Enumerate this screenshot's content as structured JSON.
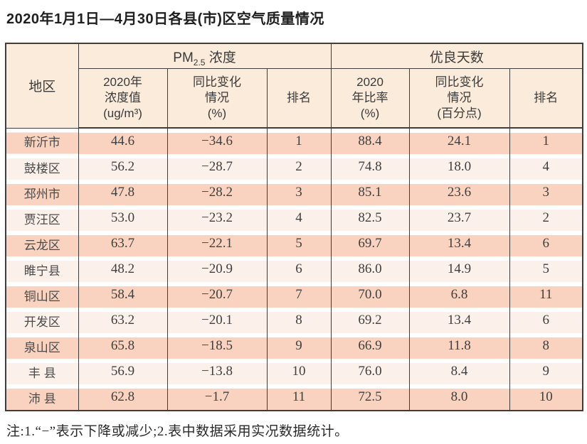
{
  "title": "2020年1月1日—4月30日各县(市)区空气质量情况",
  "table": {
    "region_header": "地区",
    "pm_group": {
      "prefix": "PM",
      "sub": "2.5",
      "suffix": " 浓度"
    },
    "good_group": "优良天数",
    "sub_headers": {
      "pm_value": "2020年\n浓度值\n(ug/m³)",
      "pm_change": "同比变化\n情况\n(%)",
      "pm_rank": "排名",
      "good_rate": "2020\n年比率\n(%)",
      "good_change": "同比变化\n情况\n(百分点)",
      "good_rank": "排名"
    },
    "rows": [
      {
        "region": "新沂市",
        "pm_value": "44.6",
        "pm_change": "−34.6",
        "pm_rank": "1",
        "good_rate": "88.4",
        "good_change": "24.1",
        "good_rank": "1"
      },
      {
        "region": "鼓楼区",
        "pm_value": "56.2",
        "pm_change": "−28.7",
        "pm_rank": "2",
        "good_rate": "74.8",
        "good_change": "18.0",
        "good_rank": "4"
      },
      {
        "region": "邳州市",
        "pm_value": "47.8",
        "pm_change": "−28.2",
        "pm_rank": "3",
        "good_rate": "85.1",
        "good_change": "23.6",
        "good_rank": "3"
      },
      {
        "region": "贾汪区",
        "pm_value": "53.0",
        "pm_change": "−23.2",
        "pm_rank": "4",
        "good_rate": "82.5",
        "good_change": "23.7",
        "good_rank": "2"
      },
      {
        "region": "云龙区",
        "pm_value": "63.7",
        "pm_change": "−22.1",
        "pm_rank": "5",
        "good_rate": "69.7",
        "good_change": "13.4",
        "good_rank": "6"
      },
      {
        "region": "睢宁县",
        "pm_value": "48.2",
        "pm_change": "−20.9",
        "pm_rank": "6",
        "good_rate": "86.0",
        "good_change": "14.9",
        "good_rank": "5"
      },
      {
        "region": "铜山区",
        "pm_value": "58.4",
        "pm_change": "−20.7",
        "pm_rank": "7",
        "good_rate": "70.0",
        "good_change": "6.8",
        "good_rank": "11"
      },
      {
        "region": "开发区",
        "pm_value": "63.2",
        "pm_change": "−20.1",
        "pm_rank": "8",
        "good_rate": "69.2",
        "good_change": "13.4",
        "good_rank": "6"
      },
      {
        "region": "泉山区",
        "pm_value": "65.8",
        "pm_change": "−18.5",
        "pm_rank": "9",
        "good_rate": "66.9",
        "good_change": "11.8",
        "good_rank": "8"
      },
      {
        "region": "丰 县",
        "pm_value": "56.9",
        "pm_change": "−13.8",
        "pm_rank": "10",
        "good_rate": "76.0",
        "good_change": "8.4",
        "good_rank": "9"
      },
      {
        "region": "沛 县",
        "pm_value": "62.8",
        "pm_change": "−1.7",
        "pm_rank": "11",
        "good_rate": "72.5",
        "good_change": "8.0",
        "good_rank": "10"
      }
    ]
  },
  "footnote": "注:1.“−”表示下降或减少;2.表中数据采用实况数据统计。",
  "colors": {
    "stripe_odd": "#f9d3c0",
    "stripe_even": "#fcf1ea",
    "header_bg": "#fbebdb",
    "border": "#3d3d3d"
  }
}
